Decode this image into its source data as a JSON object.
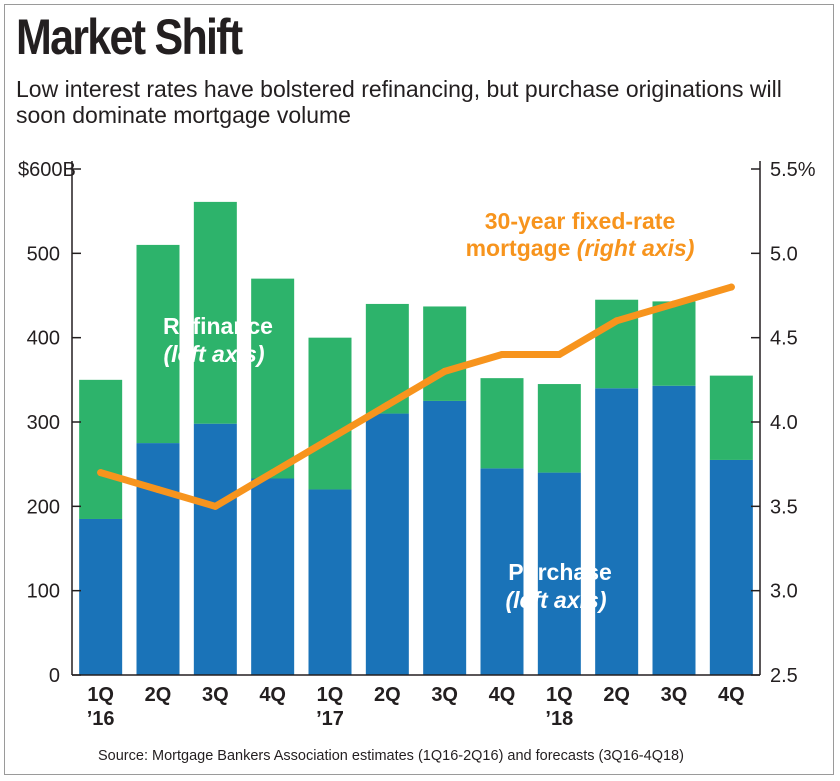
{
  "chart_data": {
    "type": "bar",
    "stacked": true,
    "title": "Market Shift",
    "subtitle": "Low interest rates have bolstered refinancing, but purchase originations will soon dominate mortgage volume",
    "categories": [
      "1Q",
      "2Q",
      "3Q",
      "4Q",
      "1Q",
      "2Q",
      "3Q",
      "4Q",
      "1Q",
      "2Q",
      "3Q",
      "4Q"
    ],
    "year_labels": [
      "’16",
      "",
      "",
      "",
      "’17",
      "",
      "",
      "",
      "’18",
      "",
      "",
      ""
    ],
    "series": [
      {
        "name": "Purchase",
        "axis": "left",
        "color": "#1a73b8",
        "values": [
          185,
          275,
          298,
          233,
          220,
          310,
          325,
          245,
          240,
          340,
          343,
          255
        ]
      },
      {
        "name": "Refinance",
        "axis": "left",
        "color": "#2db36b",
        "values": [
          165,
          235,
          263,
          237,
          180,
          130,
          112,
          107,
          105,
          105,
          100,
          100
        ]
      },
      {
        "name": "30-year fixed-rate mortgage",
        "axis": "right",
        "type": "line",
        "color": "#f7941d",
        "values": [
          3.7,
          3.6,
          3.5,
          3.7,
          3.9,
          4.1,
          4.3,
          4.4,
          4.4,
          4.6,
          4.7,
          4.8
        ]
      }
    ],
    "y_left": {
      "ylim": [
        0,
        600
      ],
      "ticks": [
        "0",
        "100",
        "200",
        "300",
        "400",
        "500",
        "$600B"
      ]
    },
    "y_right": {
      "ylim": [
        2.5,
        5.5
      ],
      "ticks": [
        "2.5",
        "3.0",
        "3.5",
        "4.0",
        "4.5",
        "5.0",
        "5.5%"
      ]
    },
    "annotations": {
      "refinance_line1": "Refinance",
      "refinance_line2": "(left axis)",
      "purchase_line1": "Purchase",
      "purchase_line2": "(left axis)",
      "rate_line1": "30-year fixed-rate",
      "rate_line2a": "mortgage ",
      "rate_line2b": "(right axis)"
    },
    "source": "Source: Mortgage Bankers Association estimates (1Q16-2Q16) and forecasts (3Q16-4Q18)",
    "colors": {
      "purchase": "#1a73b8",
      "refinance": "#2db36b",
      "rate": "#f7941d",
      "axis": "#231f20"
    }
  }
}
